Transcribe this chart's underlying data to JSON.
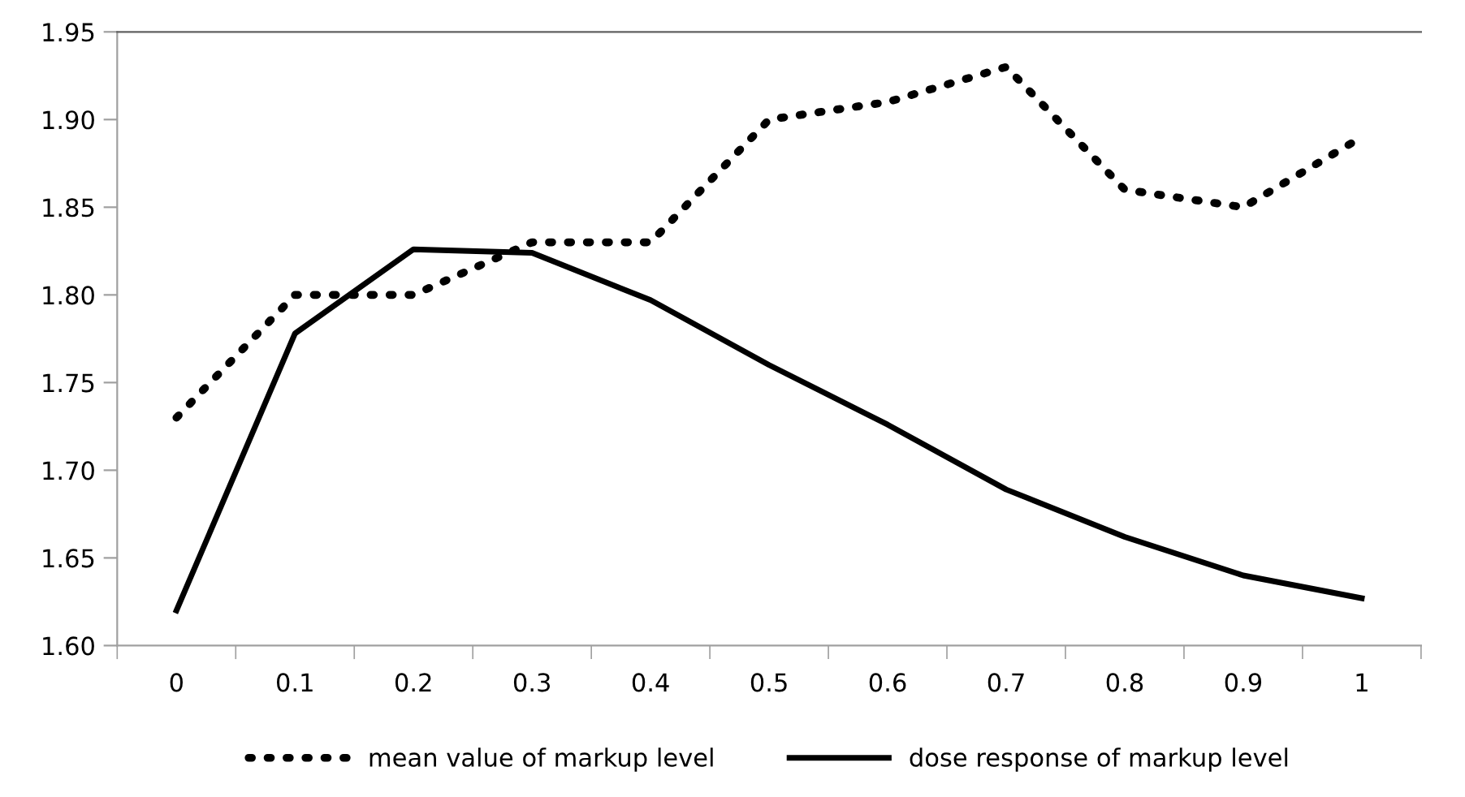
{
  "chart_data": {
    "type": "line",
    "categories": [
      "0",
      "0.1",
      "0.2",
      "0.3",
      "0.4",
      "0.5",
      "0.6",
      "0.7",
      "0.8",
      "0.9",
      "1"
    ],
    "series": [
      {
        "name": "mean value of markup level",
        "color": "#000000",
        "line_style": "dotted",
        "values": [
          1.73,
          1.8,
          1.8,
          1.83,
          1.83,
          1.9,
          1.91,
          1.93,
          1.86,
          1.85,
          1.89
        ]
      },
      {
        "name": "dose response of markup level",
        "color": "#000000",
        "line_style": "solid",
        "values": [
          1.62,
          1.778,
          1.826,
          1.824,
          1.797,
          1.76,
          1.726,
          1.689,
          1.662,
          1.64,
          1.627
        ]
      }
    ],
    "ylim": [
      1.6,
      1.95
    ],
    "yticks": [
      {
        "value": 1.6,
        "label": "1.60"
      },
      {
        "value": 1.65,
        "label": "1.65"
      },
      {
        "value": 1.7,
        "label": "1.70"
      },
      {
        "value": 1.75,
        "label": "1.75"
      },
      {
        "value": 1.8,
        "label": "1.80"
      },
      {
        "value": 1.85,
        "label": "1.85"
      },
      {
        "value": 1.9,
        "label": "1.90"
      },
      {
        "value": 1.95,
        "label": "1.95"
      }
    ],
    "grid": false,
    "legend": "bottom",
    "marker": "none"
  }
}
